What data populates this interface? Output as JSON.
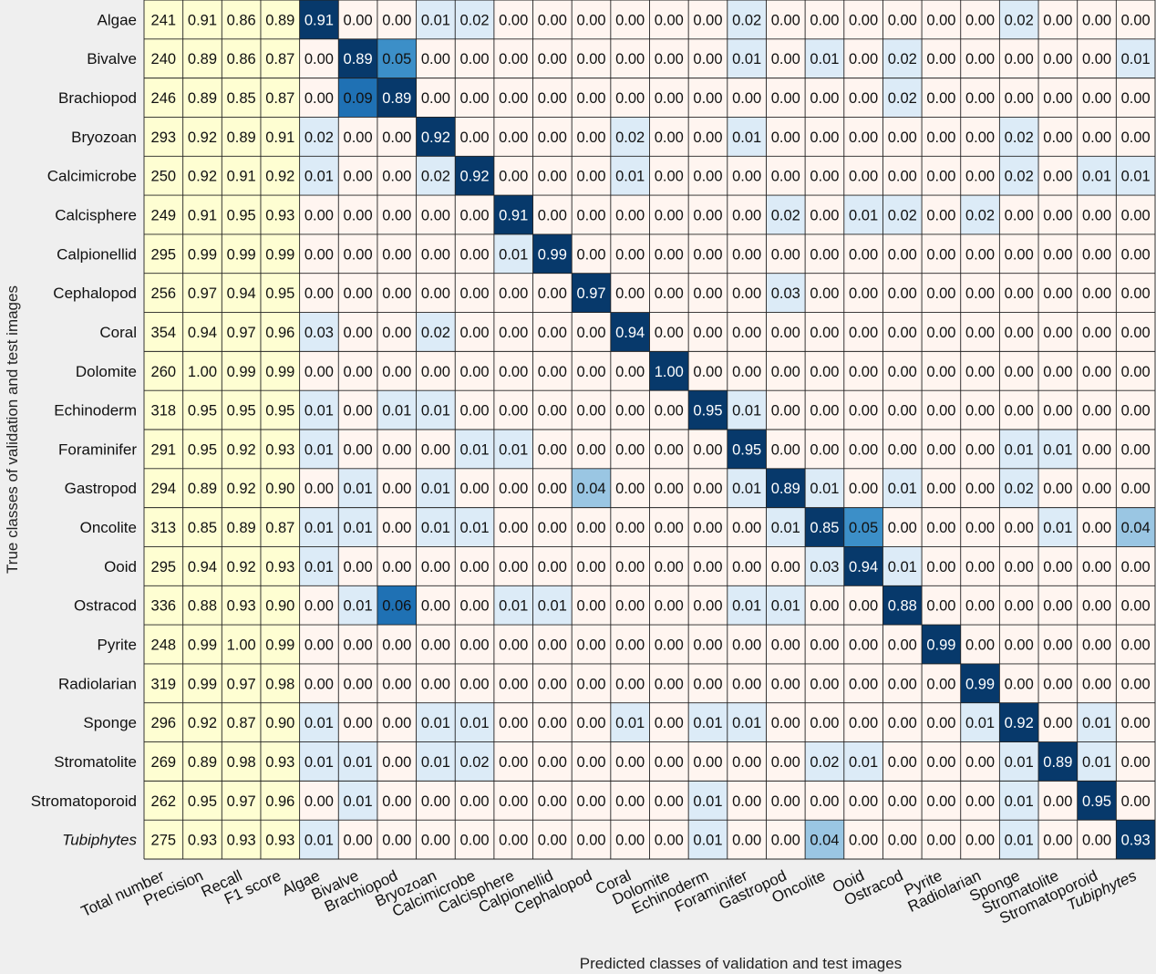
{
  "chart_data": {
    "type": "heatmap",
    "xlabel": "Predicted classes of validation and test images",
    "ylabel": "True classes of validation and test images",
    "rows": [
      "Algae",
      "Bivalve",
      "Brachiopod",
      "Bryozoan",
      "Calcimicrobe",
      "Calcisphere",
      "Calpionellid",
      "Cephalopod",
      "Coral",
      "Dolomite",
      "Echinoderm",
      "Foraminifer",
      "Gastropod",
      "Oncolite",
      "Ooid",
      "Ostracod",
      "Pyrite",
      "Radiolarian",
      "Sponge",
      "Stromatolite",
      "Stromatoporoid",
      "Tubiphytes"
    ],
    "italic_labels": [
      "Tubiphytes"
    ],
    "metric_columns": [
      "Total number",
      "Precision",
      "Recall",
      "F1 score"
    ],
    "class_columns": [
      "Algae",
      "Bivalve",
      "Brachiopod",
      "Bryozoan",
      "Calcimicrobe",
      "Calcisphere",
      "Calpionellid",
      "Cephalopod",
      "Coral",
      "Dolomite",
      "Echinoderm",
      "Foraminifer",
      "Gastropod",
      "Oncolite",
      "Ooid",
      "Ostracod",
      "Pyrite",
      "Radiolarian",
      "Sponge",
      "Stromatolite",
      "Stromatoporoid",
      "Tubiphytes"
    ],
    "metrics": [
      [
        "241",
        "0.91",
        "0.86",
        "0.89"
      ],
      [
        "240",
        "0.89",
        "0.86",
        "0.87"
      ],
      [
        "246",
        "0.89",
        "0.85",
        "0.87"
      ],
      [
        "293",
        "0.92",
        "0.89",
        "0.91"
      ],
      [
        "250",
        "0.92",
        "0.91",
        "0.92"
      ],
      [
        "249",
        "0.91",
        "0.95",
        "0.93"
      ],
      [
        "295",
        "0.99",
        "0.99",
        "0.99"
      ],
      [
        "256",
        "0.97",
        "0.94",
        "0.95"
      ],
      [
        "354",
        "0.94",
        "0.97",
        "0.96"
      ],
      [
        "260",
        "1.00",
        "0.99",
        "0.99"
      ],
      [
        "318",
        "0.95",
        "0.95",
        "0.95"
      ],
      [
        "291",
        "0.95",
        "0.92",
        "0.93"
      ],
      [
        "294",
        "0.89",
        "0.92",
        "0.90"
      ],
      [
        "313",
        "0.85",
        "0.89",
        "0.87"
      ],
      [
        "295",
        "0.94",
        "0.92",
        "0.93"
      ],
      [
        "336",
        "0.88",
        "0.93",
        "0.90"
      ],
      [
        "248",
        "0.99",
        "1.00",
        "0.99"
      ],
      [
        "319",
        "0.99",
        "0.97",
        "0.98"
      ],
      [
        "296",
        "0.92",
        "0.87",
        "0.90"
      ],
      [
        "269",
        "0.89",
        "0.98",
        "0.93"
      ],
      [
        "262",
        "0.95",
        "0.97",
        "0.96"
      ],
      [
        "275",
        "0.93",
        "0.93",
        "0.93"
      ]
    ],
    "matrix": [
      [
        "0.91",
        "0.00",
        "0.00",
        "0.01",
        "0.02",
        "0.00",
        "0.00",
        "0.00",
        "0.00",
        "0.00",
        "0.00",
        "0.02",
        "0.00",
        "0.00",
        "0.00",
        "0.00",
        "0.00",
        "0.00",
        "0.02",
        "0.00",
        "0.00",
        "0.00"
      ],
      [
        "0.00",
        "0.89",
        "0.05",
        "0.00",
        "0.00",
        "0.00",
        "0.00",
        "0.00",
        "0.00",
        "0.00",
        "0.00",
        "0.01",
        "0.00",
        "0.01",
        "0.00",
        "0.02",
        "0.00",
        "0.00",
        "0.00",
        "0.00",
        "0.00",
        "0.01"
      ],
      [
        "0.00",
        "0.09",
        "0.89",
        "0.00",
        "0.00",
        "0.00",
        "0.00",
        "0.00",
        "0.00",
        "0.00",
        "0.00",
        "0.00",
        "0.00",
        "0.00",
        "0.00",
        "0.02",
        "0.00",
        "0.00",
        "0.00",
        "0.00",
        "0.00",
        "0.00"
      ],
      [
        "0.02",
        "0.00",
        "0.00",
        "0.92",
        "0.00",
        "0.00",
        "0.00",
        "0.00",
        "0.02",
        "0.00",
        "0.00",
        "0.01",
        "0.00",
        "0.00",
        "0.00",
        "0.00",
        "0.00",
        "0.00",
        "0.02",
        "0.00",
        "0.00",
        "0.00"
      ],
      [
        "0.01",
        "0.00",
        "0.00",
        "0.02",
        "0.92",
        "0.00",
        "0.00",
        "0.00",
        "0.01",
        "0.00",
        "0.00",
        "0.00",
        "0.00",
        "0.00",
        "0.00",
        "0.00",
        "0.00",
        "0.00",
        "0.02",
        "0.00",
        "0.01",
        "0.01"
      ],
      [
        "0.00",
        "0.00",
        "0.00",
        "0.00",
        "0.00",
        "0.91",
        "0.00",
        "0.00",
        "0.00",
        "0.00",
        "0.00",
        "0.00",
        "0.02",
        "0.00",
        "0.01",
        "0.02",
        "0.00",
        "0.02",
        "0.00",
        "0.00",
        "0.00",
        "0.00"
      ],
      [
        "0.00",
        "0.00",
        "0.00",
        "0.00",
        "0.00",
        "0.01",
        "0.99",
        "0.00",
        "0.00",
        "0.00",
        "0.00",
        "0.00",
        "0.00",
        "0.00",
        "0.00",
        "0.00",
        "0.00",
        "0.00",
        "0.00",
        "0.00",
        "0.00",
        "0.00"
      ],
      [
        "0.00",
        "0.00",
        "0.00",
        "0.00",
        "0.00",
        "0.00",
        "0.00",
        "0.97",
        "0.00",
        "0.00",
        "0.00",
        "0.00",
        "0.03",
        "0.00",
        "0.00",
        "0.00",
        "0.00",
        "0.00",
        "0.00",
        "0.00",
        "0.00",
        "0.00"
      ],
      [
        "0.03",
        "0.00",
        "0.00",
        "0.02",
        "0.00",
        "0.00",
        "0.00",
        "0.00",
        "0.94",
        "0.00",
        "0.00",
        "0.00",
        "0.00",
        "0.00",
        "0.00",
        "0.00",
        "0.00",
        "0.00",
        "0.00",
        "0.00",
        "0.00",
        "0.00"
      ],
      [
        "0.00",
        "0.00",
        "0.00",
        "0.00",
        "0.00",
        "0.00",
        "0.00",
        "0.00",
        "0.00",
        "1.00",
        "0.00",
        "0.00",
        "0.00",
        "0.00",
        "0.00",
        "0.00",
        "0.00",
        "0.00",
        "0.00",
        "0.00",
        "0.00",
        "0.00"
      ],
      [
        "0.01",
        "0.00",
        "0.01",
        "0.01",
        "0.00",
        "0.00",
        "0.00",
        "0.00",
        "0.00",
        "0.00",
        "0.95",
        "0.01",
        "0.00",
        "0.00",
        "0.00",
        "0.00",
        "0.00",
        "0.00",
        "0.00",
        "0.00",
        "0.00",
        "0.00"
      ],
      [
        "0.01",
        "0.00",
        "0.00",
        "0.00",
        "0.01",
        "0.01",
        "0.00",
        "0.00",
        "0.00",
        "0.00",
        "0.00",
        "0.95",
        "0.00",
        "0.00",
        "0.00",
        "0.00",
        "0.00",
        "0.00",
        "0.01",
        "0.01",
        "0.00",
        "0.00"
      ],
      [
        "0.00",
        "0.01",
        "0.00",
        "0.01",
        "0.00",
        "0.00",
        "0.00",
        "0.04",
        "0.00",
        "0.00",
        "0.00",
        "0.01",
        "0.89",
        "0.01",
        "0.00",
        "0.01",
        "0.00",
        "0.00",
        "0.02",
        "0.00",
        "0.00",
        "0.00"
      ],
      [
        "0.01",
        "0.01",
        "0.00",
        "0.01",
        "0.01",
        "0.00",
        "0.00",
        "0.00",
        "0.00",
        "0.00",
        "0.00",
        "0.00",
        "0.01",
        "0.85",
        "0.05",
        "0.00",
        "0.00",
        "0.00",
        "0.00",
        "0.01",
        "0.00",
        "0.04"
      ],
      [
        "0.01",
        "0.00",
        "0.00",
        "0.00",
        "0.00",
        "0.00",
        "0.00",
        "0.00",
        "0.00",
        "0.00",
        "0.00",
        "0.00",
        "0.00",
        "0.03",
        "0.94",
        "0.01",
        "0.00",
        "0.00",
        "0.00",
        "0.00",
        "0.00",
        "0.00"
      ],
      [
        "0.00",
        "0.01",
        "0.06",
        "0.00",
        "0.00",
        "0.01",
        "0.01",
        "0.00",
        "0.00",
        "0.00",
        "0.00",
        "0.01",
        "0.01",
        "0.00",
        "0.00",
        "0.88",
        "0.00",
        "0.00",
        "0.00",
        "0.00",
        "0.00",
        "0.00"
      ],
      [
        "0.00",
        "0.00",
        "0.00",
        "0.00",
        "0.00",
        "0.00",
        "0.00",
        "0.00",
        "0.00",
        "0.00",
        "0.00",
        "0.00",
        "0.00",
        "0.00",
        "0.00",
        "0.00",
        "0.99",
        "0.00",
        "0.00",
        "0.00",
        "0.00",
        "0.00"
      ],
      [
        "0.00",
        "0.00",
        "0.00",
        "0.00",
        "0.00",
        "0.00",
        "0.00",
        "0.00",
        "0.00",
        "0.00",
        "0.00",
        "0.00",
        "0.00",
        "0.00",
        "0.00",
        "0.00",
        "0.00",
        "0.99",
        "0.00",
        "0.00",
        "0.00",
        "0.00"
      ],
      [
        "0.01",
        "0.00",
        "0.00",
        "0.01",
        "0.01",
        "0.00",
        "0.00",
        "0.00",
        "0.01",
        "0.00",
        "0.01",
        "0.01",
        "0.00",
        "0.00",
        "0.00",
        "0.00",
        "0.00",
        "0.01",
        "0.92",
        "0.00",
        "0.01",
        "0.00"
      ],
      [
        "0.01",
        "0.01",
        "0.00",
        "0.01",
        "0.02",
        "0.00",
        "0.00",
        "0.00",
        "0.00",
        "0.00",
        "0.00",
        "0.00",
        "0.00",
        "0.02",
        "0.01",
        "0.00",
        "0.00",
        "0.00",
        "0.01",
        "0.89",
        "0.01",
        "0.00"
      ],
      [
        "0.00",
        "0.01",
        "0.00",
        "0.00",
        "0.00",
        "0.00",
        "0.00",
        "0.00",
        "0.00",
        "0.00",
        "0.01",
        "0.00",
        "0.00",
        "0.00",
        "0.00",
        "0.00",
        "0.00",
        "0.00",
        "0.01",
        "0.00",
        "0.95",
        "0.00"
      ],
      [
        "0.01",
        "0.00",
        "0.00",
        "0.00",
        "0.00",
        "0.00",
        "0.00",
        "0.00",
        "0.00",
        "0.00",
        "0.01",
        "0.00",
        "0.00",
        "0.04",
        "0.00",
        "0.00",
        "0.00",
        "0.00",
        "0.01",
        "0.00",
        "0.00",
        "0.93"
      ]
    ],
    "colors": {
      "background": "#efefef",
      "metric_cell": "#fefed2",
      "zero_cell": "#fff5f0",
      "low_cell": "#dcebf7",
      "mid_cell_04": "#9ac6e3",
      "mid_cell_05": "#3c8fc8",
      "mid_cell_06": "#1f71b4",
      "high_cell": "#07396b",
      "grid_line": "#222222"
    }
  }
}
